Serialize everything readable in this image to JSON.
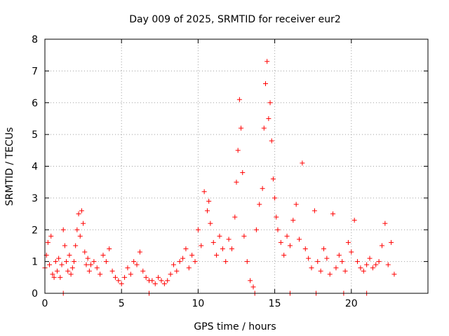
{
  "chart_data": {
    "type": "scatter",
    "title": "Day 009 of 2025, SRMTID for receiver eur2",
    "xlabel": "GPS time / hours",
    "ylabel": "SRMTID / TECUs",
    "xlim": [
      0,
      25
    ],
    "ylim": [
      0,
      8
    ],
    "xticks": [
      0,
      5,
      10,
      15,
      20
    ],
    "xtick_labels": [
      "0",
      "5",
      "10",
      "15",
      "20"
    ],
    "yticks": [
      0,
      1,
      2,
      3,
      4,
      5,
      6,
      7,
      8
    ],
    "ytick_labels": [
      "0",
      "1",
      "2",
      "3",
      "4",
      "5",
      "6",
      "7",
      "8"
    ],
    "grid": true,
    "marker": "+",
    "color": "#ff0000",
    "series": [
      {
        "name": "SRMTID",
        "x": [
          0.0,
          0.1,
          0.2,
          0.3,
          0.4,
          0.5,
          0.6,
          0.7,
          0.8,
          0.9,
          1.0,
          1.1,
          1.2,
          1.3,
          1.4,
          1.5,
          1.6,
          1.7,
          1.8,
          1.9,
          2.0,
          2.1,
          2.2,
          2.3,
          2.4,
          2.5,
          2.6,
          2.7,
          2.8,
          2.9,
          3.0,
          3.2,
          3.4,
          3.6,
          3.8,
          4.0,
          4.2,
          4.4,
          4.6,
          4.8,
          5.0,
          5.2,
          5.4,
          5.6,
          5.8,
          6.0,
          6.2,
          6.4,
          6.6,
          6.8,
          7.0,
          7.2,
          7.4,
          7.6,
          7.8,
          8.0,
          8.2,
          8.4,
          8.6,
          8.8,
          9.0,
          9.2,
          9.4,
          9.6,
          9.8,
          10.0,
          10.2,
          10.4,
          10.6,
          10.7,
          10.8,
          11.0,
          11.2,
          11.4,
          11.6,
          11.8,
          12.0,
          12.2,
          12.4,
          12.5,
          12.6,
          12.7,
          12.8,
          12.9,
          13.0,
          13.2,
          13.4,
          13.6,
          13.8,
          14.0,
          14.2,
          14.3,
          14.4,
          14.5,
          14.6,
          14.7,
          14.8,
          14.9,
          15.0,
          15.1,
          15.2,
          15.4,
          15.6,
          15.8,
          16.0,
          16.2,
          16.4,
          16.6,
          16.8,
          17.0,
          17.2,
          17.4,
          17.6,
          17.8,
          18.0,
          18.2,
          18.4,
          18.6,
          18.8,
          19.0,
          19.2,
          19.4,
          19.6,
          19.8,
          20.0,
          20.2,
          20.4,
          20.6,
          20.8,
          21.0,
          21.2,
          21.4,
          21.6,
          21.8,
          22.0,
          22.2,
          22.4,
          22.6,
          22.8,
          1.2,
          6.8,
          13.7,
          16.0,
          17.7,
          19.5,
          21.0
        ],
        "y": [
          0.8,
          1.2,
          1.6,
          0.9,
          1.8,
          0.6,
          0.5,
          1.0,
          0.7,
          1.1,
          0.5,
          0.9,
          2.0,
          1.5,
          1.0,
          0.7,
          1.2,
          0.6,
          0.8,
          1.0,
          1.5,
          2.0,
          2.5,
          1.8,
          2.6,
          2.2,
          1.3,
          0.9,
          1.1,
          0.7,
          0.9,
          1.0,
          0.8,
          0.6,
          1.2,
          1.0,
          1.4,
          0.7,
          0.5,
          0.4,
          0.3,
          0.5,
          0.8,
          0.6,
          1.0,
          0.9,
          1.3,
          0.7,
          0.5,
          0.4,
          0.4,
          0.3,
          0.5,
          0.4,
          0.3,
          0.4,
          0.6,
          0.9,
          0.7,
          1.0,
          1.1,
          1.4,
          0.8,
          1.2,
          1.0,
          2.0,
          1.5,
          3.2,
          2.6,
          2.9,
          2.2,
          1.6,
          1.2,
          1.8,
          1.4,
          1.0,
          1.7,
          1.4,
          2.4,
          3.5,
          4.5,
          6.1,
          5.2,
          3.8,
          1.8,
          1.0,
          0.4,
          0.2,
          2.0,
          2.8,
          3.3,
          5.2,
          6.6,
          7.3,
          5.5,
          6.0,
          4.8,
          3.6,
          3.0,
          2.4,
          2.0,
          1.6,
          1.2,
          1.8,
          1.5,
          2.3,
          2.8,
          1.7,
          4.1,
          1.4,
          1.1,
          0.8,
          2.6,
          1.0,
          0.7,
          1.4,
          1.1,
          0.6,
          2.5,
          0.8,
          1.2,
          1.0,
          0.7,
          1.6,
          1.3,
          2.3,
          1.0,
          0.8,
          0.7,
          0.9,
          1.1,
          0.8,
          0.9,
          1.0,
          1.5,
          2.2,
          0.9,
          1.6,
          0.6,
          0.0,
          0.0,
          0.0,
          0.0,
          0.0,
          0.0,
          0.0
        ]
      }
    ]
  }
}
